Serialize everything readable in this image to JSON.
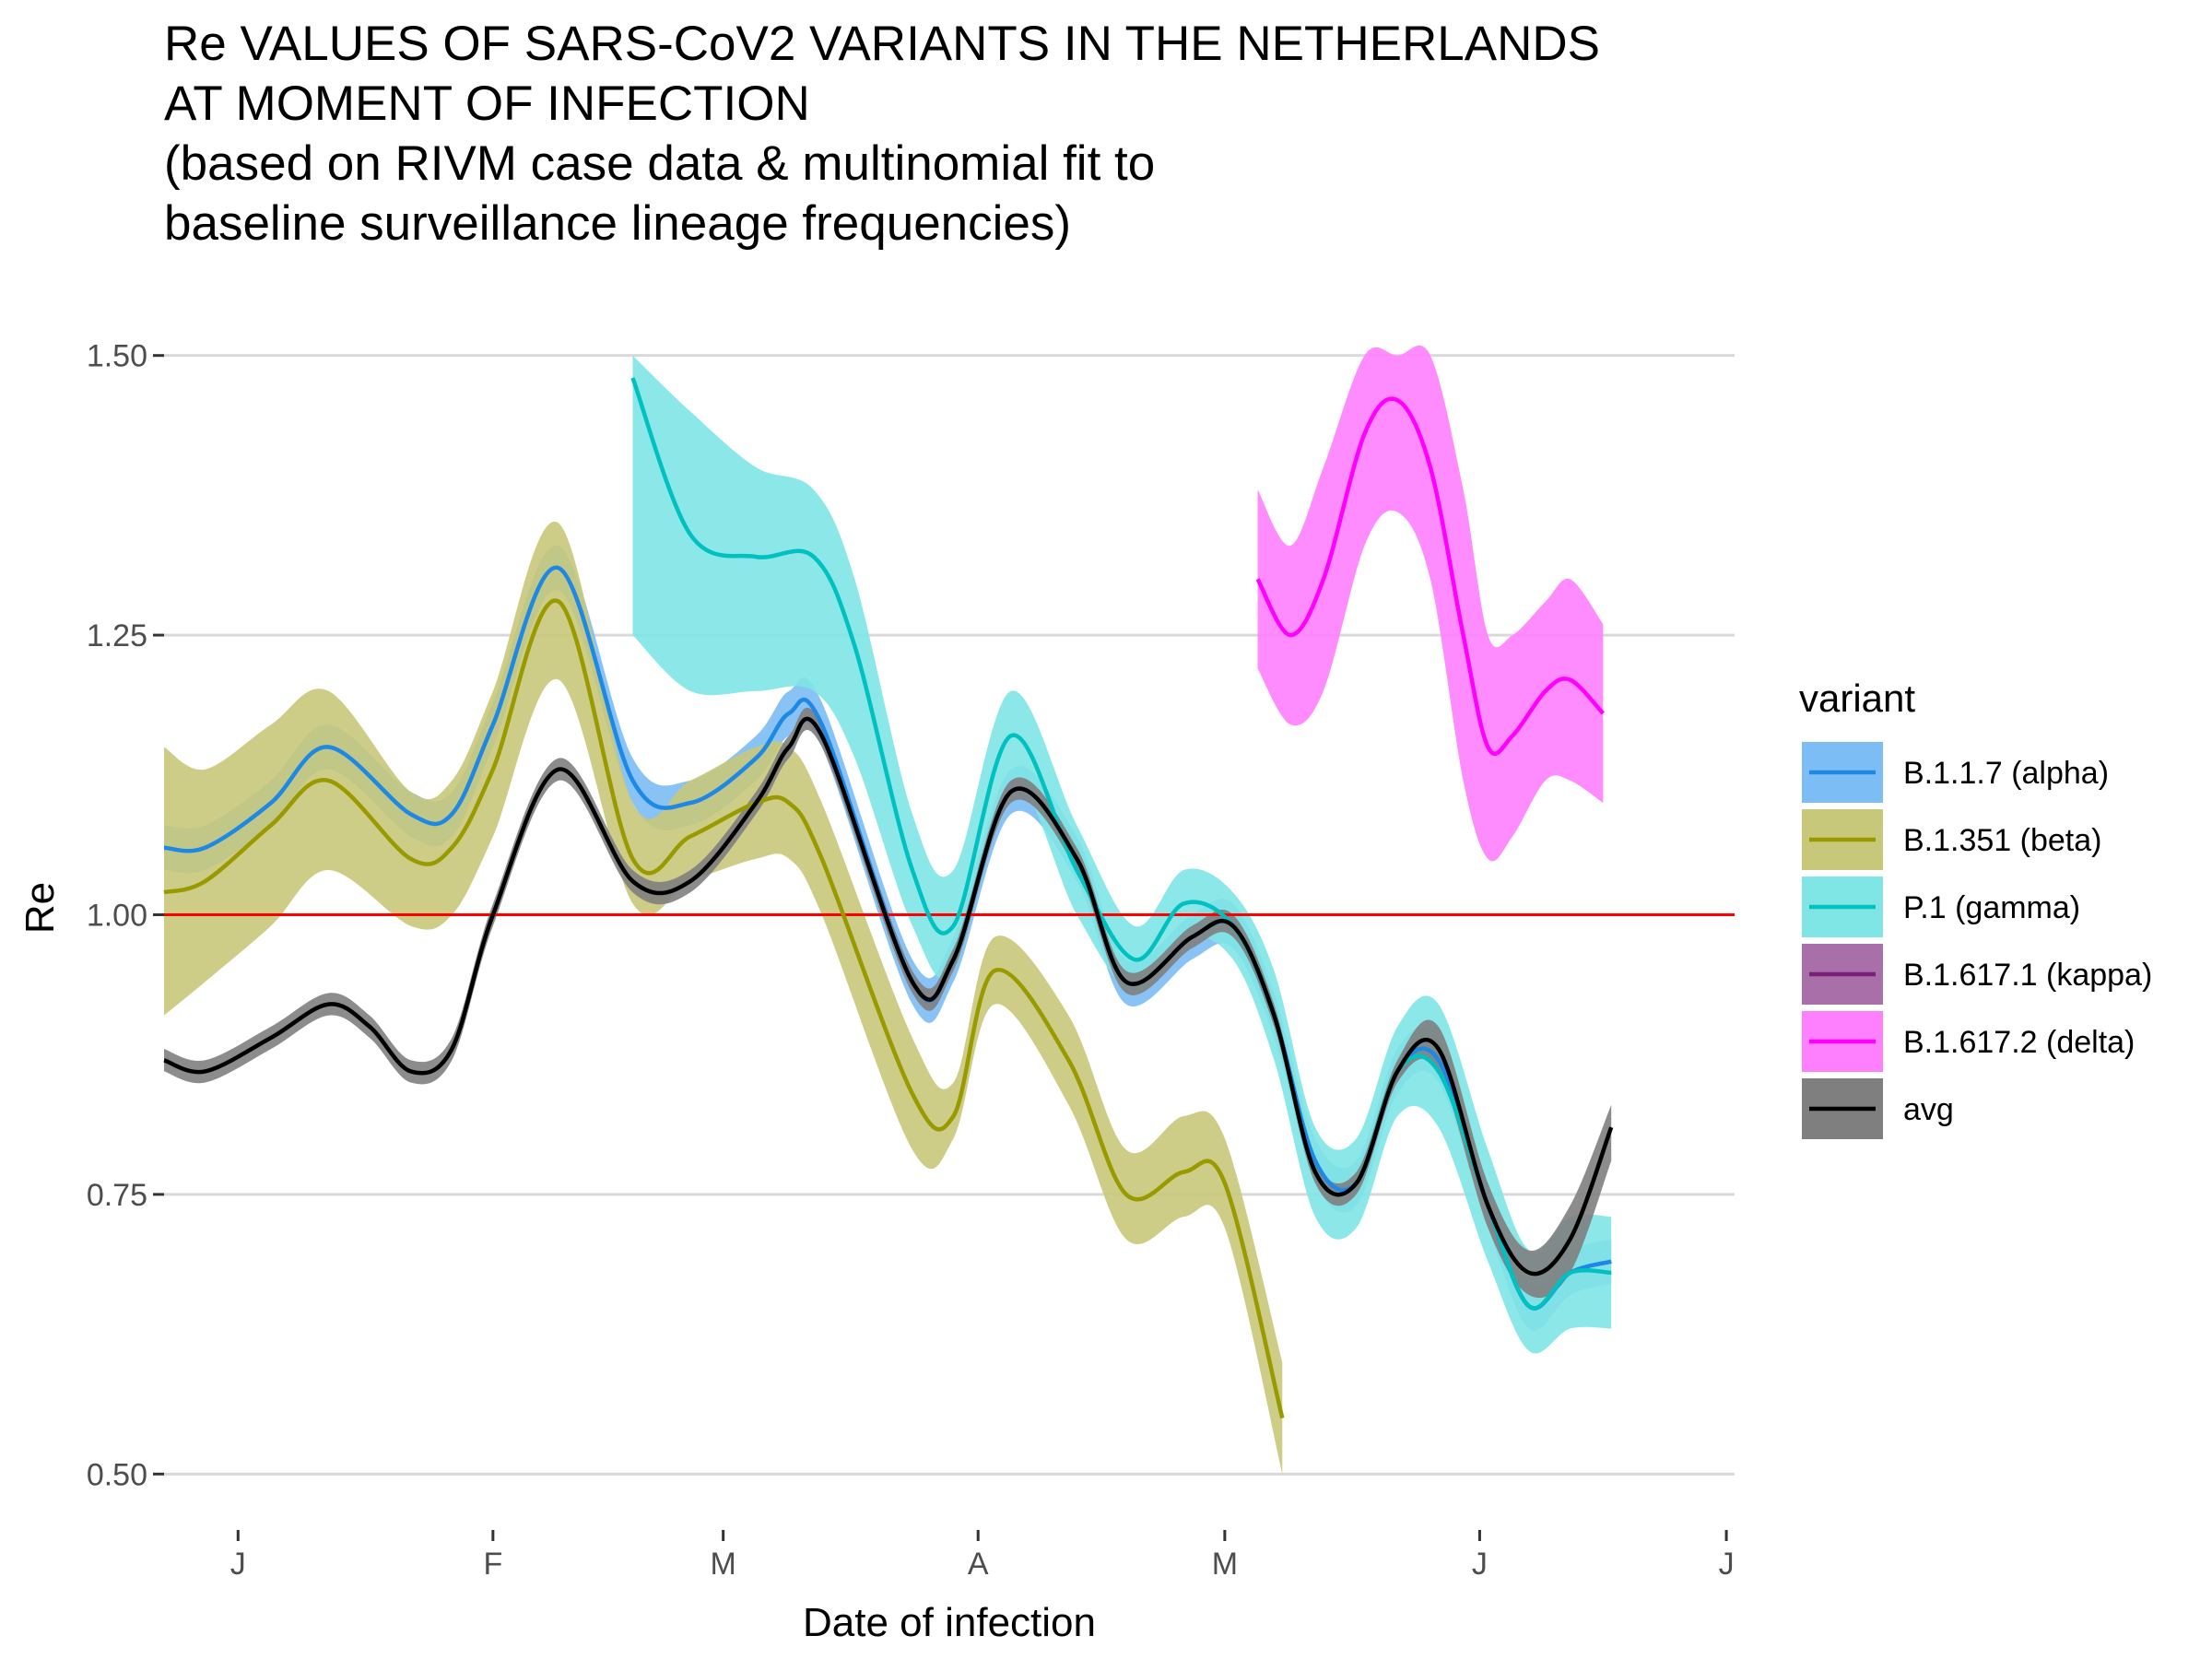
{
  "chart_data": {
    "type": "line",
    "title": [
      "Re VALUES OF SARS-CoV2 VARIANTS IN THE NETHERLANDS",
      "AT MOMENT OF INFECTION",
      "(based on RIVM case data & multinomial fit to",
      "baseline surveillance lineage frequencies)"
    ],
    "xlabel": "Date of infection",
    "ylabel": "Re",
    "ylim": [
      0.5,
      1.5
    ],
    "yticks": [
      "0.50",
      "0.75",
      "1.00",
      "1.25",
      "1.50"
    ],
    "ytick_values": [
      0.5,
      0.75,
      1.0,
      1.25,
      1.5
    ],
    "xlim": [
      "2020-12-23",
      "2021-07-02"
    ],
    "xticks": [
      {
        "label": "J",
        "date": "2021-01-01"
      },
      {
        "label": "F",
        "date": "2021-02-01"
      },
      {
        "label": "M",
        "date": "2021-03-01"
      },
      {
        "label": "A",
        "date": "2021-04-01"
      },
      {
        "label": "M",
        "date": "2021-05-01"
      },
      {
        "label": "J",
        "date": "2021-06-01"
      },
      {
        "label": "J",
        "date": "2021-07-01"
      }
    ],
    "reference_line": {
      "y": 1.0,
      "color": "#ff0000"
    },
    "grid": true,
    "legend_title": "variant",
    "legend_position": "right",
    "series": [
      {
        "name": "B.1.1.7 (alpha)",
        "color": "#1e88e5",
        "fill": "#7cbdf5",
        "x": [
          "2020-12-23",
          "2020-12-28",
          "2021-01-05",
          "2021-01-12",
          "2021-01-22",
          "2021-01-27",
          "2021-02-01",
          "2021-02-09",
          "2021-02-18",
          "2021-02-25",
          "2021-03-05",
          "2021-03-09",
          "2021-03-13",
          "2021-03-24",
          "2021-03-29",
          "2021-04-05",
          "2021-04-13",
          "2021-04-19",
          "2021-04-27",
          "2021-05-02",
          "2021-05-07",
          "2021-05-12",
          "2021-05-17",
          "2021-05-22",
          "2021-05-27",
          "2021-06-02",
          "2021-06-07",
          "2021-06-12",
          "2021-06-17"
        ],
        "y": [
          1.06,
          1.06,
          1.1,
          1.15,
          1.09,
          1.09,
          1.17,
          1.31,
          1.12,
          1.1,
          1.14,
          1.18,
          1.17,
          0.94,
          0.96,
          1.11,
          1.05,
          0.94,
          0.98,
          0.99,
          0.91,
          0.78,
          0.76,
          0.86,
          0.87,
          0.74,
          0.65,
          0.68,
          0.69
        ],
        "lower": [
          1.04,
          1.04,
          1.08,
          1.13,
          1.07,
          1.07,
          1.15,
          1.29,
          1.1,
          1.08,
          1.12,
          1.16,
          1.15,
          0.92,
          0.94,
          1.09,
          1.03,
          0.92,
          0.96,
          0.97,
          0.89,
          0.76,
          0.74,
          0.84,
          0.85,
          0.72,
          0.63,
          0.66,
          0.67
        ],
        "upper": [
          1.08,
          1.08,
          1.12,
          1.17,
          1.11,
          1.11,
          1.19,
          1.33,
          1.14,
          1.12,
          1.16,
          1.2,
          1.19,
          0.96,
          0.98,
          1.13,
          1.07,
          0.96,
          1.0,
          1.01,
          0.93,
          0.8,
          0.78,
          0.88,
          0.89,
          0.76,
          0.67,
          0.7,
          0.71
        ]
      },
      {
        "name": "B.1.351 (beta)",
        "color": "#999900",
        "fill": "#c8c87a",
        "x": [
          "2020-12-23",
          "2020-12-28",
          "2021-01-05",
          "2021-01-12",
          "2021-01-22",
          "2021-01-27",
          "2021-02-01",
          "2021-02-09",
          "2021-02-18",
          "2021-02-25",
          "2021-03-05",
          "2021-03-09",
          "2021-03-13",
          "2021-03-24",
          "2021-03-29",
          "2021-04-03",
          "2021-04-12",
          "2021-04-19",
          "2021-04-26",
          "2021-05-01",
          "2021-05-08"
        ],
        "y": [
          1.02,
          1.03,
          1.08,
          1.12,
          1.05,
          1.06,
          1.13,
          1.28,
          1.05,
          1.07,
          1.1,
          1.1,
          1.05,
          0.84,
          0.82,
          0.95,
          0.87,
          0.75,
          0.77,
          0.76,
          0.55
        ],
        "lower": [
          0.91,
          0.94,
          0.99,
          1.04,
          0.99,
          1.0,
          1.07,
          1.21,
          1.01,
          1.03,
          1.05,
          1.05,
          1.0,
          0.79,
          0.8,
          0.92,
          0.83,
          0.71,
          0.73,
          0.72,
          0.5
        ],
        "upper": [
          1.15,
          1.13,
          1.17,
          1.2,
          1.11,
          1.12,
          1.2,
          1.35,
          1.1,
          1.12,
          1.15,
          1.15,
          1.1,
          0.89,
          0.85,
          0.98,
          0.91,
          0.79,
          0.82,
          0.8,
          0.6
        ]
      },
      {
        "name": "P.1 (gamma)",
        "color": "#00c0c0",
        "fill": "#7fe5e5",
        "x": [
          "2021-02-18",
          "2021-02-25",
          "2021-03-05",
          "2021-03-12",
          "2021-03-17",
          "2021-03-24",
          "2021-03-29",
          "2021-04-05",
          "2021-04-13",
          "2021-04-20",
          "2021-04-26",
          "2021-05-02",
          "2021-05-07",
          "2021-05-12",
          "2021-05-17",
          "2021-05-22",
          "2021-05-27",
          "2021-06-02",
          "2021-06-07",
          "2021-06-12",
          "2021-06-17"
        ],
        "y": [
          1.48,
          1.34,
          1.32,
          1.32,
          1.24,
          1.04,
          0.99,
          1.16,
          1.04,
          0.96,
          1.01,
          0.99,
          0.91,
          0.77,
          0.76,
          0.86,
          0.86,
          0.74,
          0.65,
          0.68,
          0.68
        ],
        "lower": [
          1.25,
          1.2,
          1.2,
          1.2,
          1.14,
          0.99,
          0.95,
          1.12,
          1.0,
          0.93,
          0.98,
          0.96,
          0.87,
          0.73,
          0.72,
          0.82,
          0.81,
          0.69,
          0.61,
          0.63,
          0.63
        ],
        "upper": [
          1.5,
          1.45,
          1.4,
          1.38,
          1.3,
          1.09,
          1.04,
          1.2,
          1.08,
          0.99,
          1.04,
          1.02,
          0.95,
          0.81,
          0.8,
          0.9,
          0.92,
          0.79,
          0.7,
          0.73,
          0.73
        ]
      },
      {
        "name": "B.1.617.1 (kappa)",
        "color": "#7b1f7b",
        "fill": "#a96fa9",
        "x": [],
        "y": []
      },
      {
        "name": "B.1.617.2 (delta)",
        "color": "#ff00ff",
        "fill": "#ff80ff",
        "x": [
          "2021-05-05",
          "2021-05-09",
          "2021-05-13",
          "2021-05-18",
          "2021-05-22",
          "2021-05-26",
          "2021-05-30",
          "2021-06-02",
          "2021-06-05",
          "2021-06-09",
          "2021-06-12",
          "2021-06-16"
        ],
        "y": [
          1.3,
          1.25,
          1.3,
          1.43,
          1.46,
          1.4,
          1.25,
          1.15,
          1.16,
          1.2,
          1.21,
          1.18
        ],
        "lower": [
          1.22,
          1.17,
          1.2,
          1.33,
          1.36,
          1.3,
          1.12,
          1.05,
          1.07,
          1.12,
          1.12,
          1.1
        ],
        "upper": [
          1.38,
          1.33,
          1.4,
          1.5,
          1.5,
          1.5,
          1.38,
          1.25,
          1.25,
          1.28,
          1.3,
          1.26
        ]
      },
      {
        "name": "avg",
        "color": "#000000",
        "fill": "#7f7f7f",
        "x": [
          "2020-12-23",
          "2020-12-28",
          "2021-01-05",
          "2021-01-12",
          "2021-01-17",
          "2021-01-22",
          "2021-01-27",
          "2021-02-01",
          "2021-02-09",
          "2021-02-18",
          "2021-02-25",
          "2021-03-05",
          "2021-03-09",
          "2021-03-13",
          "2021-03-24",
          "2021-03-29",
          "2021-04-05",
          "2021-04-13",
          "2021-04-19",
          "2021-04-27",
          "2021-05-02",
          "2021-05-07",
          "2021-05-12",
          "2021-05-17",
          "2021-05-22",
          "2021-05-27",
          "2021-06-02",
          "2021-06-07",
          "2021-06-12",
          "2021-06-17"
        ],
        "y": [
          0.87,
          0.86,
          0.89,
          0.92,
          0.9,
          0.86,
          0.88,
          1.0,
          1.13,
          1.03,
          1.03,
          1.1,
          1.15,
          1.16,
          0.94,
          0.96,
          1.11,
          1.05,
          0.94,
          0.98,
          0.99,
          0.91,
          0.77,
          0.76,
          0.86,
          0.88,
          0.74,
          0.68,
          0.71,
          0.81
        ],
        "lower": [
          0.86,
          0.85,
          0.88,
          0.91,
          0.89,
          0.85,
          0.87,
          0.99,
          1.12,
          1.02,
          1.02,
          1.09,
          1.14,
          1.15,
          0.93,
          0.95,
          1.1,
          1.04,
          0.93,
          0.97,
          0.98,
          0.9,
          0.76,
          0.75,
          0.85,
          0.86,
          0.72,
          0.66,
          0.68,
          0.78
        ],
        "upper": [
          0.88,
          0.87,
          0.9,
          0.93,
          0.91,
          0.87,
          0.89,
          1.01,
          1.14,
          1.04,
          1.04,
          1.11,
          1.16,
          1.17,
          0.95,
          0.97,
          1.12,
          1.06,
          0.95,
          0.99,
          1.0,
          0.92,
          0.78,
          0.77,
          0.87,
          0.9,
          0.76,
          0.7,
          0.74,
          0.83
        ]
      }
    ]
  }
}
